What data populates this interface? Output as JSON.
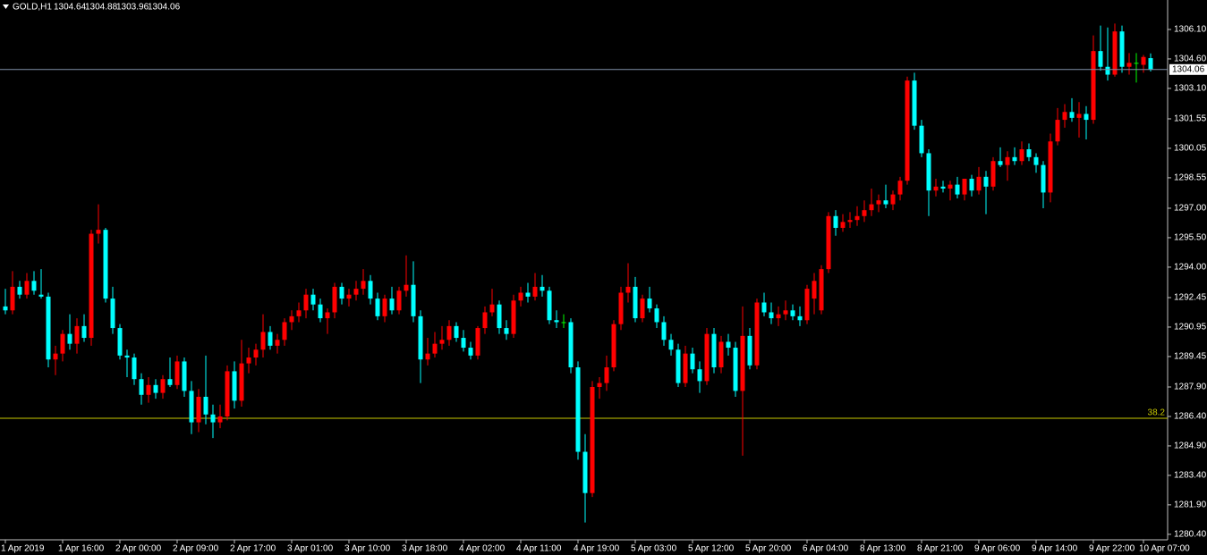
{
  "chart_data": {
    "type": "candlestick",
    "symbol": "GOLD,H1",
    "up_color": "#ff0000",
    "down_color": "#00ffff",
    "doji_color": "#00ff00",
    "ylim": [
      1280.12,
      1307.6
    ],
    "yticks": [
      {
        "value": 1306.1,
        "label": "1306.10"
      },
      {
        "value": 1304.6,
        "label": "1304.60"
      },
      {
        "value": 1303.1,
        "label": "1303.10"
      },
      1301.55,
      1300.05,
      1298.55,
      {
        "value": 1297,
        "label": "1297.00"
      },
      {
        "value": 1295.5,
        "label": "1295.50"
      },
      {
        "value": 1294,
        "label": "1294.00"
      },
      1292.45,
      1290.95,
      1289.45,
      {
        "value": 1287.9,
        "label": "1287.90"
      },
      {
        "value": 1286.4,
        "label": "1286.40"
      },
      {
        "value": 1284.9,
        "label": "1284.90"
      },
      {
        "value": 1283.4,
        "label": "1283.40"
      },
      {
        "value": 1281.9,
        "label": "1281.90"
      },
      {
        "value": 1280.4,
        "label": "1280.40"
      }
    ],
    "xticks": [
      {
        "value": 0,
        "label": "1 Apr 2019"
      },
      {
        "value": 8,
        "label": "1 Apr 16:00"
      },
      {
        "value": 16,
        "label": "2 Apr 00:00"
      },
      {
        "value": 24,
        "label": "2 Apr 09:00"
      },
      {
        "value": 32,
        "label": "2 Apr 17:00"
      },
      {
        "value": 40,
        "label": "3 Apr 01:00"
      },
      {
        "value": 48,
        "label": "3 Apr 10:00"
      },
      {
        "value": 56,
        "label": "3 Apr 18:00"
      },
      {
        "value": 64,
        "label": "4 Apr 02:00"
      },
      {
        "value": 72,
        "label": "4 Apr 11:00"
      },
      {
        "value": 80,
        "label": "4 Apr 19:00"
      },
      {
        "value": 88,
        "label": "5 Apr 03:00"
      },
      {
        "value": 96,
        "label": "5 Apr 12:00"
      },
      {
        "value": 104,
        "label": "5 Apr 20:00"
      },
      {
        "value": 112,
        "label": "6 Apr 04:00"
      },
      {
        "value": 120,
        "label": "8 Apr 13:00"
      },
      {
        "value": 128,
        "label": "8 Apr 21:00"
      },
      {
        "value": 136,
        "label": "9 Apr 06:00"
      },
      {
        "value": 144,
        "label": "9 Apr 14:00"
      },
      {
        "value": 152,
        "label": "9 Apr 22:00"
      },
      {
        "value": 159,
        "label": "10 Apr 07:00"
      }
    ],
    "fib_level": {
      "ratio": 38.2,
      "price": 1286.31,
      "color": "#c8c800"
    },
    "price_line_color": "#8090a8",
    "candles": [
      {
        "o": 1292.0,
        "h": 1292.9,
        "l": 1291.6,
        "c": 1291.8
      },
      {
        "o": 1291.8,
        "h": 1293.8,
        "l": 1291.6,
        "c": 1293.0
      },
      {
        "o": 1293.0,
        "h": 1293.3,
        "l": 1292.4,
        "c": 1292.6
      },
      {
        "o": 1292.6,
        "h": 1293.7,
        "l": 1292.4,
        "c": 1293.3
      },
      {
        "o": 1293.3,
        "h": 1293.8,
        "l": 1292.6,
        "c": 1292.8
      },
      {
        "o": 1292.6,
        "h": 1293.9,
        "l": 1292.4,
        "c": 1292.5
      },
      {
        "o": 1292.5,
        "h": 1292.7,
        "l": 1288.9,
        "c": 1289.3
      },
      {
        "o": 1289.3,
        "h": 1290.0,
        "l": 1288.5,
        "c": 1289.6
      },
      {
        "o": 1289.6,
        "h": 1290.8,
        "l": 1289.2,
        "c": 1290.6
      },
      {
        "o": 1290.6,
        "h": 1291.6,
        "l": 1289.8,
        "c": 1290.1
      },
      {
        "o": 1290.1,
        "h": 1291.4,
        "l": 1289.6,
        "c": 1291.0
      },
      {
        "o": 1291.0,
        "h": 1291.6,
        "l": 1290.2,
        "c": 1290.4
      },
      {
        "o": 1290.4,
        "h": 1295.9,
        "l": 1290.0,
        "c": 1295.7
      },
      {
        "o": 1295.7,
        "h": 1297.2,
        "l": 1295.2,
        "c": 1295.9
      },
      {
        "o": 1295.9,
        "h": 1296.0,
        "l": 1292.2,
        "c": 1292.4
      },
      {
        "o": 1292.4,
        "h": 1293.0,
        "l": 1290.6,
        "c": 1290.9
      },
      {
        "o": 1290.9,
        "h": 1291.1,
        "l": 1289.3,
        "c": 1289.5
      },
      {
        "o": 1289.5,
        "h": 1289.8,
        "l": 1288.4,
        "c": 1289.4
      },
      {
        "o": 1289.4,
        "h": 1289.6,
        "l": 1288.0,
        "c": 1288.3
      },
      {
        "o": 1288.3,
        "h": 1288.6,
        "l": 1287.0,
        "c": 1287.5
      },
      {
        "o": 1287.5,
        "h": 1288.4,
        "l": 1287.1,
        "c": 1288.0
      },
      {
        "o": 1288.0,
        "h": 1288.3,
        "l": 1287.3,
        "c": 1287.6
      },
      {
        "o": 1287.6,
        "h": 1288.5,
        "l": 1287.3,
        "c": 1288.3
      },
      {
        "o": 1288.3,
        "h": 1289.4,
        "l": 1287.9,
        "c": 1288.0
      },
      {
        "o": 1288.0,
        "h": 1289.5,
        "l": 1287.8,
        "c": 1289.2
      },
      {
        "o": 1289.2,
        "h": 1289.4,
        "l": 1287.4,
        "c": 1287.7
      },
      {
        "o": 1287.7,
        "h": 1288.2,
        "l": 1285.5,
        "c": 1286.1
      },
      {
        "o": 1286.1,
        "h": 1287.8,
        "l": 1285.6,
        "c": 1287.4
      },
      {
        "o": 1287.4,
        "h": 1289.5,
        "l": 1286.0,
        "c": 1286.5
      },
      {
        "o": 1286.5,
        "h": 1287.0,
        "l": 1285.3,
        "c": 1286.1
      },
      {
        "o": 1286.1,
        "h": 1287.0,
        "l": 1285.8,
        "c": 1286.4
      },
      {
        "o": 1286.4,
        "h": 1289.0,
        "l": 1286.2,
        "c": 1288.7
      },
      {
        "o": 1288.7,
        "h": 1289.2,
        "l": 1286.8,
        "c": 1287.2
      },
      {
        "o": 1287.2,
        "h": 1290.3,
        "l": 1286.9,
        "c": 1289.1
      },
      {
        "o": 1289.1,
        "h": 1289.9,
        "l": 1288.6,
        "c": 1289.4
      },
      {
        "o": 1289.4,
        "h": 1290.1,
        "l": 1289.0,
        "c": 1289.8
      },
      {
        "o": 1289.8,
        "h": 1291.6,
        "l": 1289.4,
        "c": 1290.7
      },
      {
        "o": 1290.7,
        "h": 1291.0,
        "l": 1289.8,
        "c": 1290.0
      },
      {
        "o": 1290.0,
        "h": 1290.6,
        "l": 1289.6,
        "c": 1290.3
      },
      {
        "o": 1290.3,
        "h": 1291.4,
        "l": 1290.0,
        "c": 1291.2
      },
      {
        "o": 1291.2,
        "h": 1291.8,
        "l": 1290.8,
        "c": 1291.5
      },
      {
        "o": 1291.5,
        "h": 1292.2,
        "l": 1291.2,
        "c": 1291.8
      },
      {
        "o": 1291.8,
        "h": 1292.9,
        "l": 1291.4,
        "c": 1292.6
      },
      {
        "o": 1292.6,
        "h": 1292.9,
        "l": 1291.8,
        "c": 1292.1
      },
      {
        "o": 1292.1,
        "h": 1292.4,
        "l": 1291.2,
        "c": 1291.4
      },
      {
        "o": 1291.4,
        "h": 1291.9,
        "l": 1290.6,
        "c": 1291.7
      },
      {
        "o": 1291.7,
        "h": 1293.2,
        "l": 1291.4,
        "c": 1293.0
      },
      {
        "o": 1293.0,
        "h": 1293.2,
        "l": 1292.1,
        "c": 1292.4
      },
      {
        "o": 1292.4,
        "h": 1292.9,
        "l": 1292.0,
        "c": 1292.6
      },
      {
        "o": 1292.6,
        "h": 1293.3,
        "l": 1292.3,
        "c": 1292.9
      },
      {
        "o": 1292.9,
        "h": 1293.9,
        "l": 1292.6,
        "c": 1293.3
      },
      {
        "o": 1293.3,
        "h": 1293.6,
        "l": 1292.1,
        "c": 1292.4
      },
      {
        "o": 1292.4,
        "h": 1292.7,
        "l": 1291.3,
        "c": 1291.5
      },
      {
        "o": 1291.5,
        "h": 1292.6,
        "l": 1291.2,
        "c": 1292.4
      },
      {
        "o": 1292.4,
        "h": 1293.0,
        "l": 1291.6,
        "c": 1291.8
      },
      {
        "o": 1291.8,
        "h": 1293.0,
        "l": 1291.6,
        "c": 1292.8
      },
      {
        "o": 1292.8,
        "h": 1294.6,
        "l": 1292.5,
        "c": 1293.1
      },
      {
        "o": 1293.1,
        "h": 1294.3,
        "l": 1291.2,
        "c": 1291.5
      },
      {
        "o": 1291.5,
        "h": 1291.8,
        "l": 1288.1,
        "c": 1289.3
      },
      {
        "o": 1289.3,
        "h": 1290.4,
        "l": 1289.0,
        "c": 1289.6
      },
      {
        "o": 1289.6,
        "h": 1290.7,
        "l": 1289.4,
        "c": 1290.1
      },
      {
        "o": 1290.1,
        "h": 1291.0,
        "l": 1289.8,
        "c": 1290.3
      },
      {
        "o": 1290.3,
        "h": 1291.3,
        "l": 1290.0,
        "c": 1291.0
      },
      {
        "o": 1291.0,
        "h": 1291.2,
        "l": 1290.2,
        "c": 1290.4
      },
      {
        "o": 1290.4,
        "h": 1290.8,
        "l": 1289.7,
        "c": 1289.9
      },
      {
        "o": 1289.9,
        "h": 1290.2,
        "l": 1289.3,
        "c": 1289.5
      },
      {
        "o": 1289.5,
        "h": 1291.0,
        "l": 1289.3,
        "c": 1290.9
      },
      {
        "o": 1290.9,
        "h": 1292.0,
        "l": 1290.6,
        "c": 1291.7
      },
      {
        "o": 1291.7,
        "h": 1292.9,
        "l": 1291.5,
        "c": 1292.1
      },
      {
        "o": 1292.1,
        "h": 1292.3,
        "l": 1290.6,
        "c": 1290.9
      },
      {
        "o": 1290.9,
        "h": 1291.3,
        "l": 1290.3,
        "c": 1290.6
      },
      {
        "o": 1290.6,
        "h": 1292.6,
        "l": 1290.4,
        "c": 1292.3
      },
      {
        "o": 1292.3,
        "h": 1293.0,
        "l": 1292.0,
        "c": 1292.7
      },
      {
        "o": 1292.7,
        "h": 1293.2,
        "l": 1292.2,
        "c": 1292.5
      },
      {
        "o": 1292.5,
        "h": 1293.7,
        "l": 1292.3,
        "c": 1293.0
      },
      {
        "o": 1293.0,
        "h": 1293.6,
        "l": 1292.5,
        "c": 1292.8
      },
      {
        "o": 1292.8,
        "h": 1293.0,
        "l": 1291.1,
        "c": 1291.3
      },
      {
        "o": 1291.3,
        "h": 1291.8,
        "l": 1290.9,
        "c": 1291.2
      },
      {
        "o": 1291.2,
        "h": 1291.6,
        "l": 1290.9,
        "c": 1291.2
      },
      {
        "o": 1291.2,
        "h": 1291.4,
        "l": 1288.6,
        "c": 1288.9
      },
      {
        "o": 1288.9,
        "h": 1289.2,
        "l": 1284.2,
        "c": 1284.6
      },
      {
        "o": 1284.6,
        "h": 1285.5,
        "l": 1281.0,
        "c": 1282.5
      },
      {
        "o": 1282.5,
        "h": 1288.2,
        "l": 1282.3,
        "c": 1287.9
      },
      {
        "o": 1287.9,
        "h": 1288.4,
        "l": 1287.3,
        "c": 1288.1
      },
      {
        "o": 1288.1,
        "h": 1289.5,
        "l": 1287.7,
        "c": 1288.9
      },
      {
        "o": 1288.9,
        "h": 1291.3,
        "l": 1288.7,
        "c": 1291.1
      },
      {
        "o": 1291.1,
        "h": 1293.0,
        "l": 1290.8,
        "c": 1292.7
      },
      {
        "o": 1292.7,
        "h": 1294.2,
        "l": 1292.2,
        "c": 1293.0
      },
      {
        "o": 1293.0,
        "h": 1293.5,
        "l": 1291.2,
        "c": 1291.4
      },
      {
        "o": 1291.4,
        "h": 1292.6,
        "l": 1291.2,
        "c": 1292.4
      },
      {
        "o": 1292.4,
        "h": 1293.0,
        "l": 1291.7,
        "c": 1291.9
      },
      {
        "o": 1291.9,
        "h": 1292.1,
        "l": 1290.9,
        "c": 1291.2
      },
      {
        "o": 1291.2,
        "h": 1291.5,
        "l": 1290.0,
        "c": 1290.3
      },
      {
        "o": 1290.3,
        "h": 1290.6,
        "l": 1289.5,
        "c": 1289.8
      },
      {
        "o": 1289.8,
        "h": 1290.1,
        "l": 1287.9,
        "c": 1288.1
      },
      {
        "o": 1288.1,
        "h": 1290.0,
        "l": 1287.9,
        "c": 1289.6
      },
      {
        "o": 1289.6,
        "h": 1289.9,
        "l": 1288.6,
        "c": 1288.8
      },
      {
        "o": 1288.8,
        "h": 1289.2,
        "l": 1287.6,
        "c": 1288.2
      },
      {
        "o": 1288.2,
        "h": 1290.9,
        "l": 1288.0,
        "c": 1290.6
      },
      {
        "o": 1290.6,
        "h": 1290.9,
        "l": 1288.6,
        "c": 1288.9
      },
      {
        "o": 1288.9,
        "h": 1290.5,
        "l": 1288.6,
        "c": 1290.2
      },
      {
        "o": 1290.2,
        "h": 1290.6,
        "l": 1289.5,
        "c": 1289.9
      },
      {
        "o": 1289.9,
        "h": 1290.2,
        "l": 1287.4,
        "c": 1287.7
      },
      {
        "o": 1287.7,
        "h": 1292.0,
        "l": 1284.4,
        "c": 1290.5
      },
      {
        "o": 1290.5,
        "h": 1290.9,
        "l": 1288.8,
        "c": 1289.0
      },
      {
        "o": 1289.0,
        "h": 1292.4,
        "l": 1288.8,
        "c": 1292.2
      },
      {
        "o": 1292.2,
        "h": 1292.7,
        "l": 1291.5,
        "c": 1291.7
      },
      {
        "o": 1291.7,
        "h": 1292.2,
        "l": 1291.1,
        "c": 1291.4
      },
      {
        "o": 1291.4,
        "h": 1292.0,
        "l": 1291.0,
        "c": 1291.6
      },
      {
        "o": 1291.6,
        "h": 1292.3,
        "l": 1291.3,
        "c": 1291.8
      },
      {
        "o": 1291.8,
        "h": 1292.1,
        "l": 1291.3,
        "c": 1291.5
      },
      {
        "o": 1291.5,
        "h": 1292.0,
        "l": 1291.0,
        "c": 1291.3
      },
      {
        "o": 1291.3,
        "h": 1293.1,
        "l": 1291.1,
        "c": 1292.9
      },
      {
        "o": 1292.4,
        "h": 1293.7,
        "l": 1291.6,
        "c": 1293.3
      },
      {
        "o": 1291.8,
        "h": 1294.1,
        "l": 1291.6,
        "c": 1293.9
      },
      {
        "o": 1293.9,
        "h": 1296.8,
        "l": 1293.7,
        "c": 1296.6
      },
      {
        "o": 1296.6,
        "h": 1296.9,
        "l": 1295.6,
        "c": 1296.0
      },
      {
        "o": 1296.0,
        "h": 1296.7,
        "l": 1295.8,
        "c": 1296.3
      },
      {
        "o": 1296.3,
        "h": 1296.8,
        "l": 1296.0,
        "c": 1296.4
      },
      {
        "o": 1296.4,
        "h": 1297.1,
        "l": 1296.1,
        "c": 1296.6
      },
      {
        "o": 1296.6,
        "h": 1297.4,
        "l": 1296.3,
        "c": 1296.9
      },
      {
        "o": 1296.9,
        "h": 1298.0,
        "l": 1296.6,
        "c": 1297.2
      },
      {
        "o": 1297.2,
        "h": 1297.7,
        "l": 1296.8,
        "c": 1297.4
      },
      {
        "o": 1297.4,
        "h": 1298.2,
        "l": 1297.0,
        "c": 1297.2
      },
      {
        "o": 1297.2,
        "h": 1297.9,
        "l": 1296.9,
        "c": 1297.7
      },
      {
        "o": 1297.7,
        "h": 1298.6,
        "l": 1297.4,
        "c": 1298.4
      },
      {
        "o": 1298.4,
        "h": 1303.7,
        "l": 1298.2,
        "c": 1303.5
      },
      {
        "o": 1303.5,
        "h": 1303.9,
        "l": 1301.0,
        "c": 1301.2
      },
      {
        "o": 1301.2,
        "h": 1301.5,
        "l": 1299.6,
        "c": 1299.8
      },
      {
        "o": 1299.8,
        "h": 1300.0,
        "l": 1296.6,
        "c": 1297.9
      },
      {
        "o": 1297.9,
        "h": 1298.5,
        "l": 1297.6,
        "c": 1298.1
      },
      {
        "o": 1298.1,
        "h": 1298.4,
        "l": 1297.8,
        "c": 1298.0
      },
      {
        "o": 1298.0,
        "h": 1298.4,
        "l": 1297.4,
        "c": 1298.2
      },
      {
        "o": 1298.2,
        "h": 1298.6,
        "l": 1297.5,
        "c": 1297.7
      },
      {
        "o": 1297.7,
        "h": 1298.5,
        "l": 1297.4,
        "c": 1298.5
      },
      {
        "o": 1298.5,
        "h": 1298.7,
        "l": 1297.6,
        "c": 1297.9
      },
      {
        "o": 1297.9,
        "h": 1299.1,
        "l": 1297.7,
        "c": 1298.6
      },
      {
        "o": 1298.6,
        "h": 1298.9,
        "l": 1296.7,
        "c": 1298.1
      },
      {
        "o": 1298.1,
        "h": 1299.6,
        "l": 1297.9,
        "c": 1299.4
      },
      {
        "o": 1299.4,
        "h": 1300.1,
        "l": 1299.1,
        "c": 1299.2
      },
      {
        "o": 1299.2,
        "h": 1299.9,
        "l": 1298.4,
        "c": 1299.6
      },
      {
        "o": 1299.6,
        "h": 1300.1,
        "l": 1299.2,
        "c": 1299.4
      },
      {
        "o": 1299.4,
        "h": 1300.4,
        "l": 1299.2,
        "c": 1300.0
      },
      {
        "o": 1300.0,
        "h": 1300.3,
        "l": 1299.4,
        "c": 1299.6
      },
      {
        "o": 1299.6,
        "h": 1299.8,
        "l": 1298.8,
        "c": 1299.2
      },
      {
        "o": 1299.2,
        "h": 1299.4,
        "l": 1297.0,
        "c": 1297.8
      },
      {
        "o": 1297.8,
        "h": 1300.8,
        "l": 1297.3,
        "c": 1300.4
      },
      {
        "o": 1300.4,
        "h": 1302.1,
        "l": 1300.2,
        "c": 1301.5
      },
      {
        "o": 1301.5,
        "h": 1302.3,
        "l": 1301.1,
        "c": 1301.9
      },
      {
        "o": 1301.9,
        "h": 1302.6,
        "l": 1301.4,
        "c": 1301.6
      },
      {
        "o": 1301.6,
        "h": 1302.4,
        "l": 1300.6,
        "c": 1301.8
      },
      {
        "o": 1301.8,
        "h": 1302.2,
        "l": 1300.5,
        "c": 1301.5
      },
      {
        "o": 1301.5,
        "h": 1305.8,
        "l": 1301.3,
        "c": 1305.0
      },
      {
        "o": 1305.0,
        "h": 1306.3,
        "l": 1304.0,
        "c": 1304.2
      },
      {
        "o": 1304.2,
        "h": 1306.2,
        "l": 1303.5,
        "c": 1303.8
      },
      {
        "o": 1303.8,
        "h": 1306.4,
        "l": 1303.7,
        "c": 1306.0
      },
      {
        "o": 1306.0,
        "h": 1306.3,
        "l": 1303.9,
        "c": 1304.2
      },
      {
        "o": 1304.2,
        "h": 1304.9,
        "l": 1303.8,
        "c": 1304.4
      },
      {
        "o": 1304.4,
        "h": 1304.9,
        "l": 1303.4,
        "c": 1304.4
      },
      {
        "o": 1304.3,
        "h": 1304.8,
        "l": 1303.9,
        "c": 1304.7
      },
      {
        "o": 1304.64,
        "h": 1304.88,
        "l": 1303.96,
        "c": 1304.06
      }
    ]
  }
}
